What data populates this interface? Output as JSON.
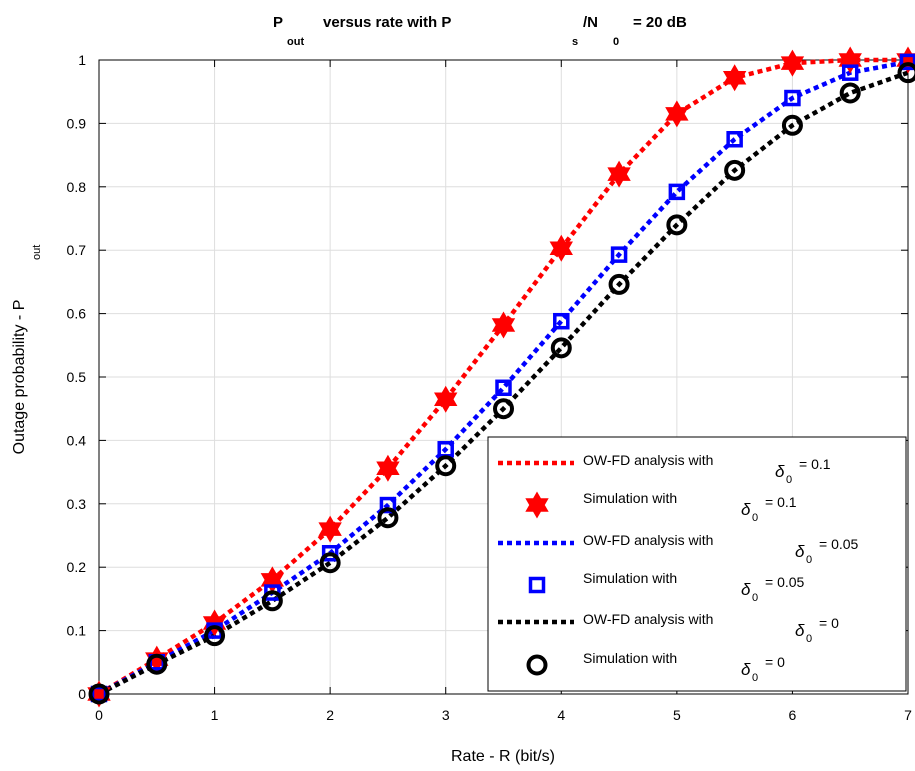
{
  "chart_data": {
    "type": "line",
    "title": {
      "p": "P",
      "out_sub": "out",
      "middle": "versus rate with P",
      "s_sub": "s",
      "slash_n": "/N",
      "zero_sub": "0",
      "end": "= 20 dB"
    },
    "xlabel": "Rate - R (bit/s)",
    "ylabel": "Outage probability - P",
    "ylabel_sub": "out",
    "xlim": [
      0,
      7
    ],
    "ylim": [
      0,
      1
    ],
    "xticks": [
      "0",
      "1",
      "2",
      "3",
      "4",
      "5",
      "6",
      "7"
    ],
    "yticks": [
      "0",
      "0.1",
      "0.2",
      "0.3",
      "0.4",
      "0.5",
      "0.6",
      "0.7",
      "0.8",
      "0.9",
      "1"
    ],
    "grid": true,
    "legend_position": "bottom-right",
    "x": [
      0,
      0.5,
      1,
      1.5,
      2,
      2.5,
      3,
      3.5,
      4,
      4.5,
      5,
      5.5,
      6,
      6.5,
      7
    ],
    "series": [
      {
        "name": "OW-FD analysis with",
        "delta_label": "δ",
        "delta_sub": "0",
        "delta_value": "= 0.1",
        "kind": "line",
        "color": "#ff0000",
        "values": [
          0,
          0.055,
          0.112,
          0.18,
          0.26,
          0.356,
          0.465,
          0.582,
          0.703,
          0.82,
          0.915,
          0.972,
          0.995,
          1.0,
          1.0
        ]
      },
      {
        "name": "Simulation with",
        "delta_label": "δ",
        "delta_sub": "0",
        "delta_value": "= 0.1",
        "kind": "marker",
        "marker": "hexagram",
        "color": "#ff0000",
        "values": [
          0,
          0.055,
          0.112,
          0.18,
          0.26,
          0.356,
          0.465,
          0.582,
          0.703,
          0.82,
          0.915,
          0.972,
          0.995,
          1.0,
          1.0
        ]
      },
      {
        "name": "OW-FD analysis with",
        "delta_label": "δ",
        "delta_sub": "0",
        "delta_value": "= 0.05",
        "kind": "line",
        "color": "#0000ff",
        "values": [
          0,
          0.05,
          0.1,
          0.16,
          0.222,
          0.298,
          0.386,
          0.483,
          0.588,
          0.693,
          0.792,
          0.875,
          0.94,
          0.98,
          0.997
        ]
      },
      {
        "name": "Simulation with",
        "delta_label": "δ",
        "delta_sub": "0",
        "delta_value": "= 0.05",
        "kind": "marker",
        "marker": "square",
        "color": "#0000ff",
        "values": [
          0,
          0.05,
          0.1,
          0.16,
          0.222,
          0.298,
          0.386,
          0.483,
          0.588,
          0.693,
          0.792,
          0.875,
          0.94,
          0.98,
          0.997
        ]
      },
      {
        "name": "OW-FD analysis with",
        "delta_label": "δ",
        "delta_sub": "0",
        "delta_value": "= 0",
        "kind": "line",
        "color": "#000000",
        "values": [
          0,
          0.047,
          0.092,
          0.147,
          0.207,
          0.278,
          0.36,
          0.45,
          0.546,
          0.646,
          0.74,
          0.826,
          0.897,
          0.948,
          0.98
        ]
      },
      {
        "name": "Simulation with",
        "delta_label": "δ",
        "delta_sub": "0",
        "delta_value": "= 0",
        "kind": "marker",
        "marker": "circle",
        "color": "#000000",
        "values": [
          0,
          0.047,
          0.092,
          0.147,
          0.207,
          0.278,
          0.36,
          0.45,
          0.546,
          0.646,
          0.74,
          0.826,
          0.897,
          0.948,
          0.98
        ]
      }
    ]
  }
}
